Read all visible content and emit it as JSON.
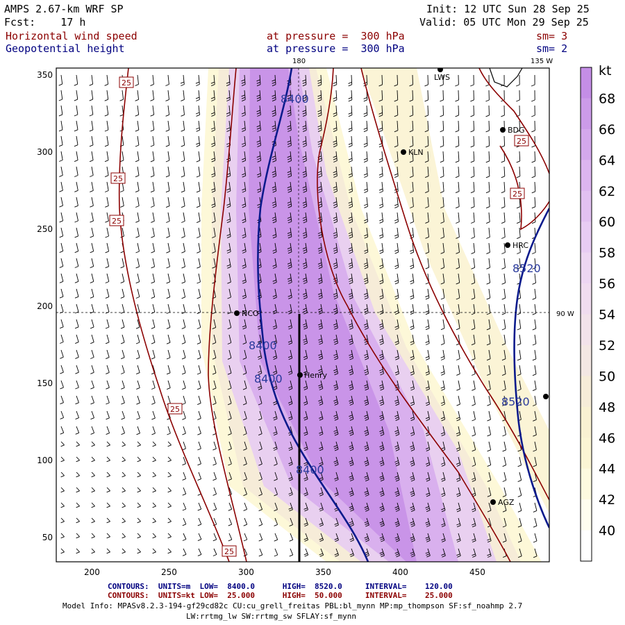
{
  "header": {
    "model": "AMPS 2.67-km WRF SP",
    "fcst_label": "Fcst:",
    "fcst_value": "17 h",
    "field1": "Horizontal wind speed",
    "field2": "Geopotential height",
    "level1": "at pressure =  300 hPa",
    "level2": "at pressure =  300 hPa",
    "init": "Init: 12 UTC Sun 28 Sep 25",
    "valid": "Valid: 05 UTC Mon 29 Sep 25",
    "sm1": "sm= 3",
    "sm2": "sm= 2"
  },
  "map": {
    "x_ticks": [
      "200",
      "250",
      "300",
      "350",
      "400",
      "450"
    ],
    "y_ticks": [
      "350",
      "300",
      "250",
      "200",
      "150",
      "100",
      "50"
    ],
    "lon_labels": {
      "top_180": "180",
      "top_135w": "135 W",
      "right_90w": "90 W"
    },
    "stations": [
      {
        "id": "LWS",
        "label": "LWS"
      },
      {
        "id": "BDG",
        "label": "BDG"
      },
      {
        "id": "KLN",
        "label": "KLN"
      },
      {
        "id": "HRC",
        "label": "HRC"
      },
      {
        "id": "NCO",
        "label": "NCO"
      },
      {
        "id": "Henry",
        "label": "Henry"
      },
      {
        "id": "AGZ",
        "label": "AGZ"
      }
    ],
    "height_contour_labels": [
      "8400",
      "8400",
      "8400",
      "8400",
      "8520",
      "8520"
    ],
    "wind_contour_labels": [
      "25",
      "25",
      "25",
      "25",
      "25",
      "25",
      "25"
    ]
  },
  "colorbar": {
    "unit": "kt",
    "levels": [
      "68",
      "66",
      "64",
      "62",
      "60",
      "58",
      "56",
      "54",
      "52",
      "50",
      "48",
      "46",
      "44",
      "42",
      "40"
    ],
    "colors": [
      "#c48ee6",
      "#cc9be9",
      "#d4a8ec",
      "#dcb5ef",
      "#e2c1f1",
      "#e8ccf3",
      "#edd6f2",
      "#f0dcef",
      "#f2e2ea",
      "#f3e7e3",
      "#f6ecd8",
      "#f9f1d2",
      "#fbf5d4",
      "#fdfadf",
      "#fefdef",
      "#ffffff"
    ]
  },
  "footer": {
    "contours1_label": "CONTOURS:",
    "contours1_units": "UNITS=m",
    "contours1_low": "LOW=  8400.0",
    "contours1_high": "HIGH=  8520.0",
    "contours1_interval": "INTERVAL=    120.00",
    "contours2_label": "CONTOURS:",
    "contours2_units": "UNITS=kt",
    "contours2_low": "LOW=  25.000",
    "contours2_high": "HIGH=  50.000",
    "contours2_interval": "INTERVAL=    25.000",
    "model_info_line1": "Model Info: MPASv8.2.3-194-gf29cd82c CU:cu_grell_freitas PBL:bl_mynn MP:mp_thompson SF:sf_noahmp 2.7",
    "model_info_line2": "LW:rrtmg_lw SW:rrtmg_sw SFLAY:sf_mynn"
  }
}
